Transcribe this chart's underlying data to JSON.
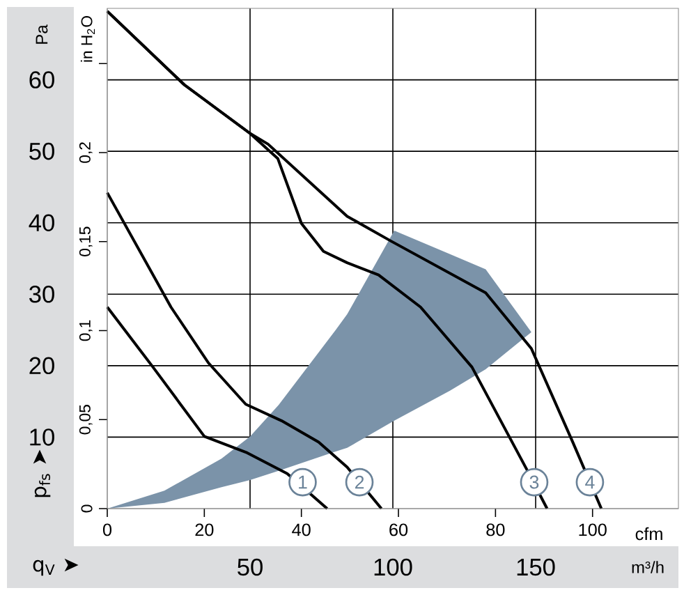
{
  "chart_data": {
    "type": "line",
    "xlabel": "q$_{V}$ ➤",
    "ylabel": "p$_{fs}$ ➤",
    "y2label": "in H$_{2}$O",
    "x2label": "cfm",
    "annotations": [
      "Pa",
      "m³/h",
      {
        "text": "1",
        "x": 68.4,
        "y": 3.7
      },
      {
        "text": "2",
        "x": 88.3,
        "y": 3.7
      },
      {
        "text": "3",
        "x": 149.5,
        "y": 3.7
      },
      {
        "text": "4",
        "x": 169,
        "y": 3.7
      }
    ],
    "xlim": [
      0,
      200
    ],
    "ylim": [
      0,
      70
    ],
    "xticks": [
      50,
      100,
      150
    ],
    "yticks": [
      10,
      20,
      30,
      40,
      50,
      60
    ],
    "y2lim": [
      0,
      0.281
    ],
    "y2ticks": [
      0,
      {
        "value": 0.05,
        "label": "0,05"
      },
      {
        "value": 0.1,
        "label": "0,1"
      },
      {
        "value": 0.15,
        "label": "0,15"
      },
      {
        "value": 0.2,
        "label": "0,2"
      },
      {
        "value": 0.25,
        "label": null
      }
    ],
    "x2lim": [
      0,
      117.7
    ],
    "x2ticks": [
      0,
      20,
      40,
      60,
      80,
      100
    ],
    "grid": true,
    "series": [
      {
        "type": "line",
        "color": "#7b93a9",
        "x": [
          0,
          20,
          40,
          50,
          60,
          80,
          84,
          100.5,
          120,
          132.5,
          148.5
        ],
        "values": [
          null,
          null,
          null,
          null,
          null,
          null,
          null,
          null,
          null,
          null,
          null
        ],
        "upper": [
          0,
          2.5,
          7,
          10.1,
          14.5,
          25,
          27.2,
          38.9,
          35.6,
          33.5,
          24.7
        ],
        "lower": [
          0,
          0.8,
          3,
          4,
          5.3,
          8,
          8.5,
          12.3,
          16.5,
          19.5,
          24.7
        ]
      },
      {
        "color": "#000000",
        "x": [
          0,
          16,
          34,
          49,
          63,
          77
        ],
        "values": [
          28.2,
          19.8,
          10.1,
          7.8,
          4.9,
          0
        ]
      },
      {
        "color": "#000000",
        "x": [
          0,
          22.3,
          35.4,
          48.5,
          61,
          74,
          84,
          96
        ],
        "values": [
          44.2,
          28.2,
          20.4,
          14.6,
          12.3,
          9.3,
          5.8,
          0
        ]
      },
      {
        "color": "#000000",
        "x": [
          0,
          27,
          50,
          59.7,
          68,
          75.7,
          84,
          95,
          109.7,
          127.7,
          147,
          154
        ],
        "values": [
          69.6,
          59.3,
          52.5,
          49,
          39.9,
          36,
          34.4,
          32.7,
          28.2,
          19.8,
          5.4,
          0
        ]
      },
      {
        "color": "#000000",
        "x": [
          0,
          27,
          50,
          56.3,
          84,
          99.5,
          132.5,
          148.5,
          163,
          173
        ],
        "values": [
          69.6,
          59.3,
          52.5,
          51,
          40.9,
          37.4,
          30.2,
          22.4,
          9.3,
          0
        ]
      }
    ]
  }
}
